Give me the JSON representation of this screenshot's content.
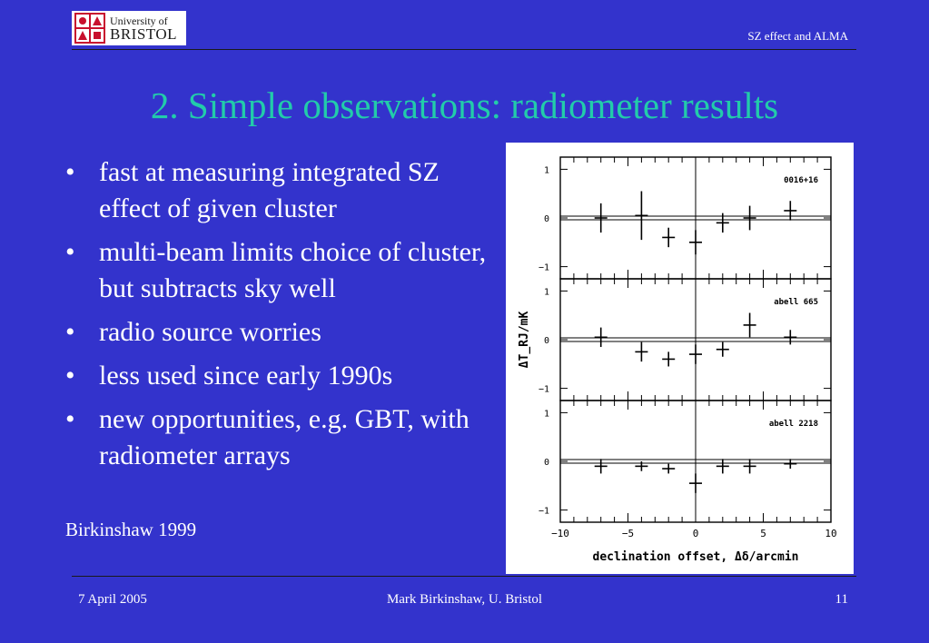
{
  "header": {
    "logo_line1": "University of",
    "logo_line2": "BRISTOL",
    "talk_label": "SZ effect and ALMA"
  },
  "slide": {
    "title": "2. Simple observations: radiometer results",
    "bullets": [
      "fast at measuring integrated SZ effect of given cluster",
      "multi-beam limits choice of cluster, but subtracts sky well",
      "radio source worries",
      "less used since early 1990s",
      "new opportunities, e.g. GBT, with radiometer arrays"
    ],
    "bullet_glyph": "•",
    "citation": "Birkinshaw 1999"
  },
  "footer": {
    "date": "7 April 2005",
    "author": "Mark Birkinshaw, U. Bristol",
    "page": "11"
  },
  "colors": {
    "background": "#3333cc",
    "title": "#22ccaa",
    "text": "#ffffff",
    "logo_red": "#c8102e"
  },
  "chart_data": {
    "type": "scatter",
    "xlabel": "declination offset, Δδ/arcmin",
    "ylabel": "ΔT_RJ/mK",
    "xlim": [
      -10,
      10
    ],
    "ylim": [
      -1.25,
      1.25
    ],
    "xticks": [
      -10,
      -5,
      0,
      5,
      10
    ],
    "yticks": [
      -1,
      0,
      1
    ],
    "panels": [
      {
        "name": "0016+16",
        "points": [
          {
            "x": -7,
            "y": 0.0,
            "yerr": 0.3
          },
          {
            "x": -4,
            "y": 0.05,
            "yerr": 0.5
          },
          {
            "x": -2,
            "y": -0.4,
            "yerr": 0.2
          },
          {
            "x": 0,
            "y": -0.5,
            "yerr": 0.25
          },
          {
            "x": 2,
            "y": -0.1,
            "yerr": 0.2
          },
          {
            "x": 4,
            "y": 0.0,
            "yerr": 0.25
          },
          {
            "x": 7,
            "y": 0.15,
            "yerr": 0.2
          }
        ]
      },
      {
        "name": "abell 665",
        "points": [
          {
            "x": -7,
            "y": 0.05,
            "yerr": 0.2
          },
          {
            "x": -4,
            "y": -0.25,
            "yerr": 0.2
          },
          {
            "x": -2,
            "y": -0.4,
            "yerr": 0.15
          },
          {
            "x": 0,
            "y": -0.3,
            "yerr": 0.2
          },
          {
            "x": 2,
            "y": -0.2,
            "yerr": 0.15
          },
          {
            "x": 4,
            "y": 0.3,
            "yerr": 0.25
          },
          {
            "x": 7,
            "y": 0.05,
            "yerr": 0.15
          }
        ]
      },
      {
        "name": "abell 2218",
        "points": [
          {
            "x": -7,
            "y": -0.1,
            "yerr": 0.15
          },
          {
            "x": -4,
            "y": -0.1,
            "yerr": 0.1
          },
          {
            "x": -2,
            "y": -0.15,
            "yerr": 0.1
          },
          {
            "x": 0,
            "y": -0.45,
            "yerr": 0.2
          },
          {
            "x": 2,
            "y": -0.1,
            "yerr": 0.15
          },
          {
            "x": 4,
            "y": -0.1,
            "yerr": 0.15
          },
          {
            "x": 7,
            "y": -0.05,
            "yerr": 0.1
          }
        ]
      }
    ]
  }
}
